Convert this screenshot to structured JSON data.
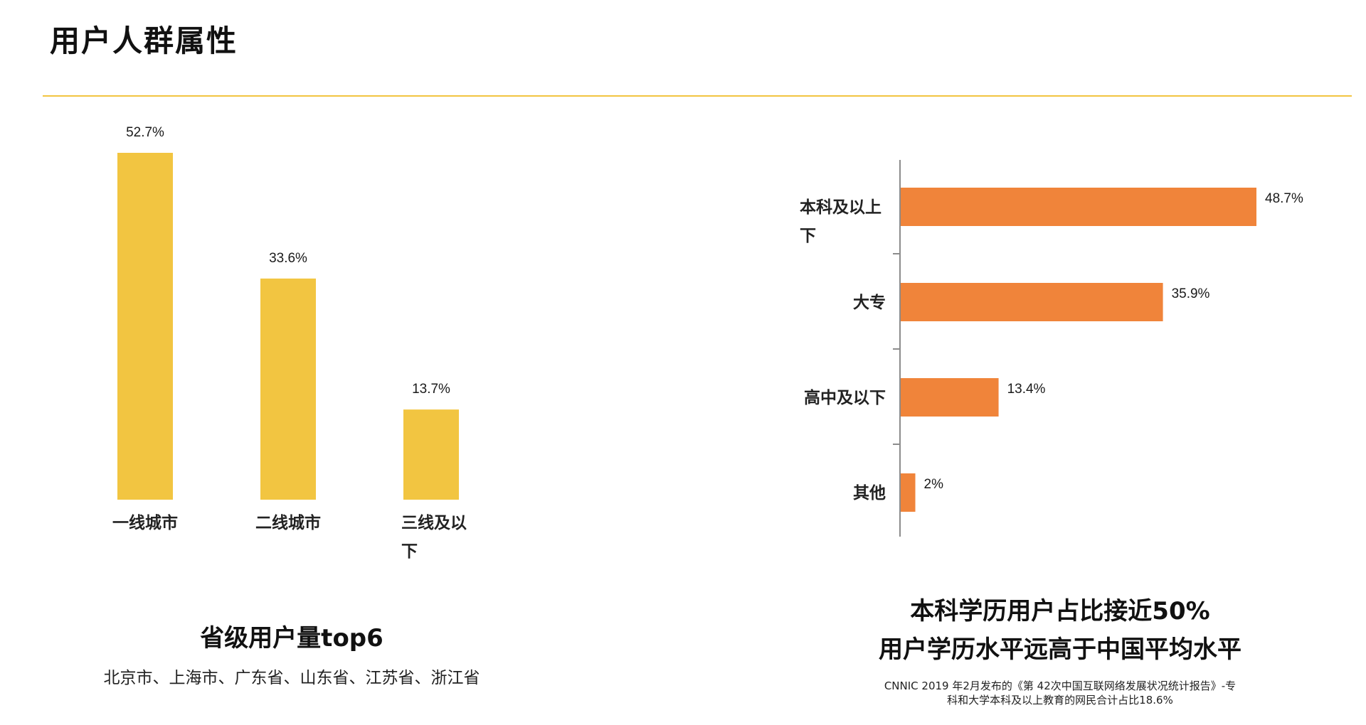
{
  "page": {
    "title": "用户人群属性"
  },
  "chart_data": [
    {
      "type": "bar",
      "orientation": "vertical",
      "categories": [
        "一线城市",
        "二线城市",
        "三线及以下"
      ],
      "values": [
        52.7,
        33.6,
        13.7
      ],
      "value_labels": [
        "52.7%",
        "33.6%",
        "13.7%"
      ],
      "ylim": [
        0,
        52.7
      ],
      "grid": false,
      "color": "#f2c541"
    },
    {
      "type": "bar",
      "orientation": "horizontal",
      "categories": [
        "本科及以上下",
        "大专",
        "高中及以下",
        "其他"
      ],
      "values": [
        48.7,
        35.9,
        13.4,
        2
      ],
      "value_labels": [
        "48.7%",
        "35.9%",
        "13.4%",
        "2%"
      ],
      "xlim": [
        0,
        48.7
      ],
      "grid": false,
      "color": "#f0843a"
    }
  ],
  "left_caption": {
    "title": "省级用户量top6",
    "subtitle": "北京市、上海市、广东省、山东省、江苏省、浙江省"
  },
  "right_caption": {
    "headline_1": "本科学历用户占比接近50%",
    "headline_2": "用户学历水平远高于中国平均水平",
    "source_line_1": "CNNIC 2019 年2月发布的《第 42次中国互联网络发展状况统计报告》-专",
    "source_line_2": "科和大学本科及以上教育的网民合计占比18.6%"
  }
}
